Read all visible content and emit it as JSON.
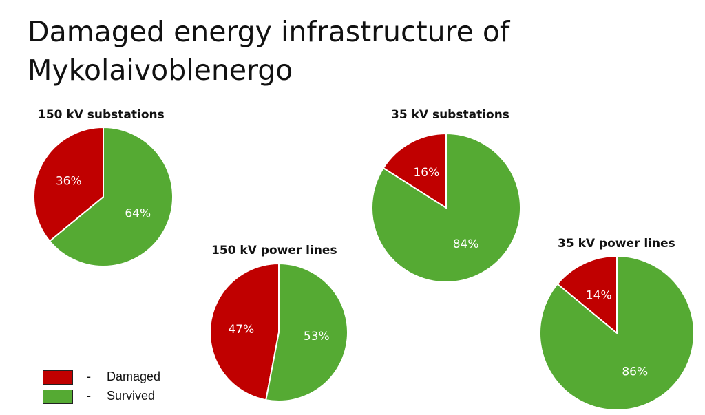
{
  "title": "Damaged energy infrastructure of Mykolaivoblenergo",
  "title_lines": [
    "Damaged energy infrastructure of",
    "Mykolaivoblenergo"
  ],
  "colors": {
    "damaged": "#c00000",
    "survived": "#55aa33",
    "label": "#ffffff"
  },
  "legend": {
    "separator": "-",
    "items": [
      {
        "label": "Damaged",
        "color": "#c00000"
      },
      {
        "label": "Survived",
        "color": "#55aa33"
      }
    ]
  },
  "chart_data": [
    {
      "type": "pie",
      "title": "150 kV substations",
      "categories": [
        "Damaged",
        "Survived"
      ],
      "values": [
        36,
        64
      ],
      "labels": [
        "36%",
        "64%"
      ]
    },
    {
      "type": "pie",
      "title": "150 kV power lines",
      "categories": [
        "Damaged",
        "Survived"
      ],
      "values": [
        47,
        53
      ],
      "labels": [
        "47%",
        "53%"
      ]
    },
    {
      "type": "pie",
      "title": "35 kV substations",
      "categories": [
        "Damaged",
        "Survived"
      ],
      "values": [
        16,
        84
      ],
      "labels": [
        "16%",
        "84%"
      ]
    },
    {
      "type": "pie",
      "title": "35 kV power lines",
      "categories": [
        "Damaged",
        "Survived"
      ],
      "values": [
        14,
        86
      ],
      "labels": [
        "14%",
        "86%"
      ]
    }
  ]
}
